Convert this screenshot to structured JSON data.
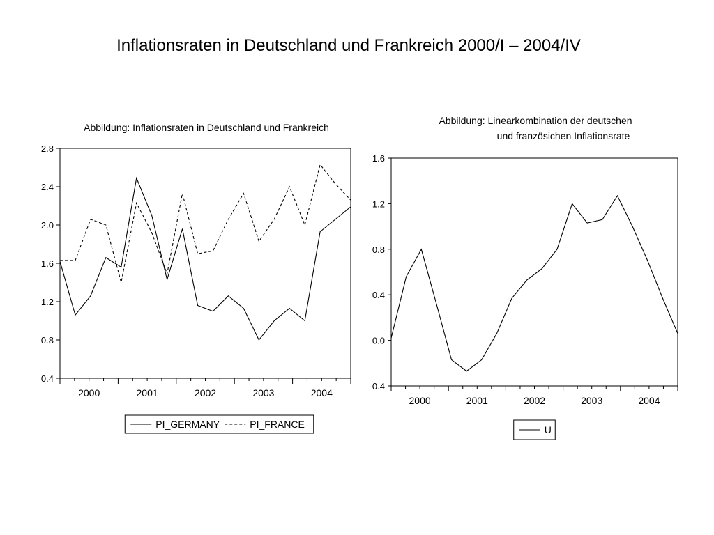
{
  "slide_title": "Inflationsraten in Deutschland und Frankreich 2000/I – 2004/IV",
  "chart_data": [
    {
      "type": "line",
      "title": "Abbildung: Inflationsraten in Deutschland und Frankreich",
      "xlabel": "",
      "ylabel": "",
      "x_tick_labels": [
        "2000",
        "2001",
        "2002",
        "2003",
        "2004"
      ],
      "x_year_start": 2000,
      "ylim": [
        0.4,
        2.8
      ],
      "yticks": [
        0.4,
        0.8,
        1.2,
        1.6,
        2.0,
        2.4,
        2.8
      ],
      "ytick_labels": [
        "0.4",
        "0.8",
        "1.2",
        "1.6",
        "2.0",
        "2.4",
        "2.8"
      ],
      "grid": false,
      "legend": "bottom",
      "series": [
        {
          "name": "PI_GERMANY",
          "style": "solid",
          "values": [
            1.62,
            1.06,
            1.26,
            1.66,
            1.56,
            2.49,
            2.1,
            1.43,
            1.96,
            1.16,
            1.1,
            1.26,
            1.13,
            0.8,
            1.0,
            1.13,
            1.0,
            1.93,
            2.06,
            2.19
          ]
        },
        {
          "name": "PI_FRANCE",
          "style": "dashed",
          "values": [
            1.63,
            1.63,
            2.06,
            2.0,
            1.4,
            2.23,
            1.92,
            1.49,
            2.33,
            1.7,
            1.73,
            2.06,
            2.33,
            1.83,
            2.06,
            2.4,
            2.0,
            2.63,
            2.43,
            2.26
          ]
        }
      ]
    },
    {
      "type": "line",
      "title": [
        "Abbildung: Linearkombination der deutschen",
        "und französichen Inflationsrate"
      ],
      "xlabel": "",
      "ylabel": "",
      "x_tick_labels": [
        "2000",
        "2001",
        "2002",
        "2003",
        "2004"
      ],
      "x_year_start": 2000,
      "ylim": [
        -0.4,
        1.6
      ],
      "yticks": [
        -0.4,
        0.0,
        0.4,
        0.8,
        1.2,
        1.6
      ],
      "ytick_labels": [
        "-0.4",
        "0.0",
        "0.4",
        "0.8",
        "1.2",
        "1.6"
      ],
      "grid": false,
      "legend": "bottom",
      "series": [
        {
          "name": "U",
          "style": "solid",
          "values": [
            0.02,
            0.56,
            0.8,
            0.32,
            -0.17,
            -0.27,
            -0.17,
            0.06,
            0.37,
            0.53,
            0.63,
            0.8,
            1.2,
            1.03,
            1.06,
            1.27,
            1.0,
            0.7,
            0.37,
            0.06
          ]
        }
      ]
    }
  ]
}
